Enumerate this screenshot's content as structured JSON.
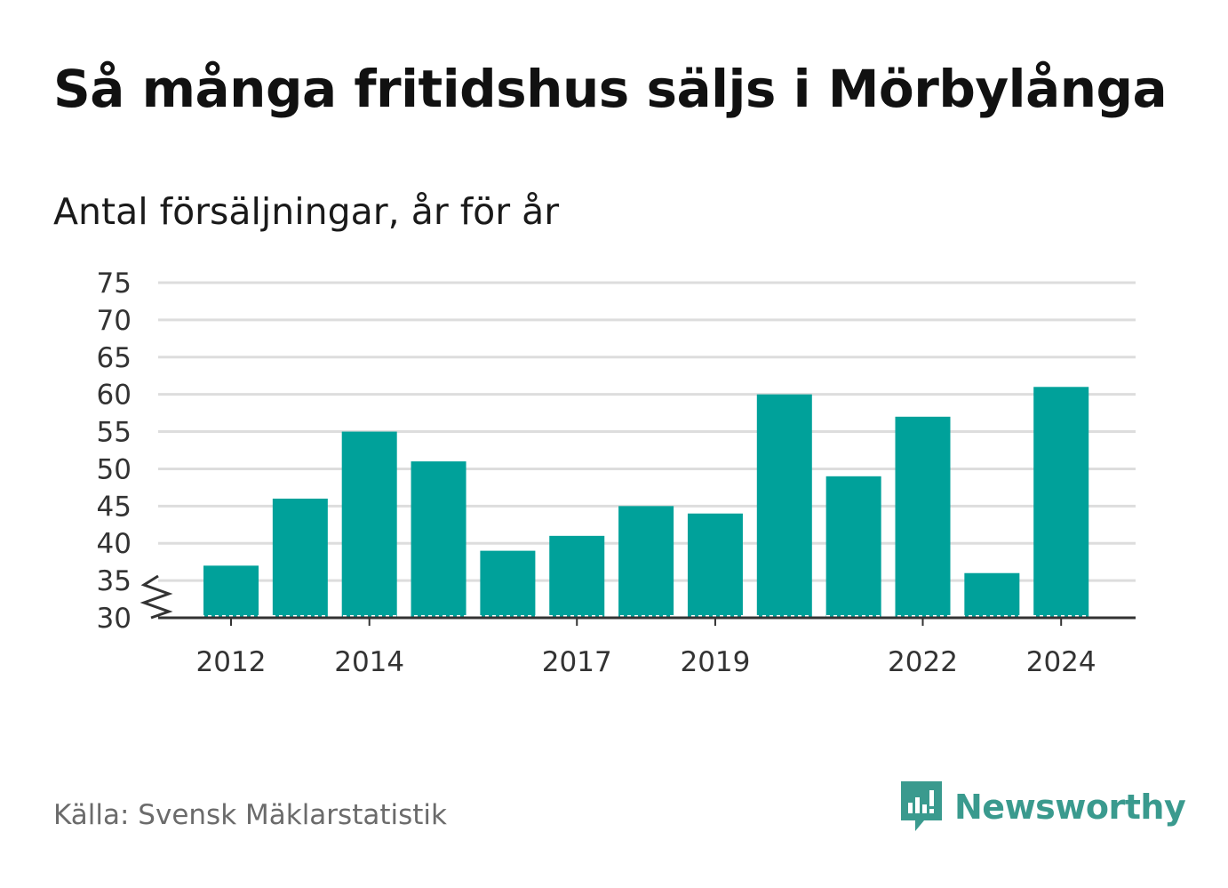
{
  "title": "Så många fritidshus säljs i Mörbylånga",
  "subtitle": "Antal försäljningar, år för år",
  "source": "Källa: Svensk Mäklarstatistik",
  "brand": {
    "name": "Newsworthy",
    "icon": "newsworthy-logo-icon",
    "color": "#3a9a8e"
  },
  "colors": {
    "bar": "#00a19a",
    "grid": "#dddddd",
    "axis": "#333333"
  },
  "chart_data": {
    "type": "bar",
    "title": "Så många fritidshus säljs i Mörbylånga",
    "subtitle": "Antal försäljningar, år för år",
    "xlabel": "",
    "ylabel": "",
    "categories": [
      "2012",
      "2013",
      "2014",
      "2015",
      "2016",
      "2017",
      "2018",
      "2019",
      "2020",
      "2021",
      "2022",
      "2023",
      "2024"
    ],
    "values": [
      37,
      46,
      55,
      51,
      39,
      41,
      45,
      44,
      60,
      49,
      57,
      36,
      61
    ],
    "x_tick_labels": [
      "2012",
      "2014",
      "2017",
      "2019",
      "2022",
      "2024"
    ],
    "y_ticks": [
      30,
      35,
      40,
      45,
      50,
      55,
      60,
      65,
      70,
      75
    ],
    "ylim": [
      30,
      75
    ],
    "axis_break": true,
    "grid": true,
    "legend": "none"
  }
}
